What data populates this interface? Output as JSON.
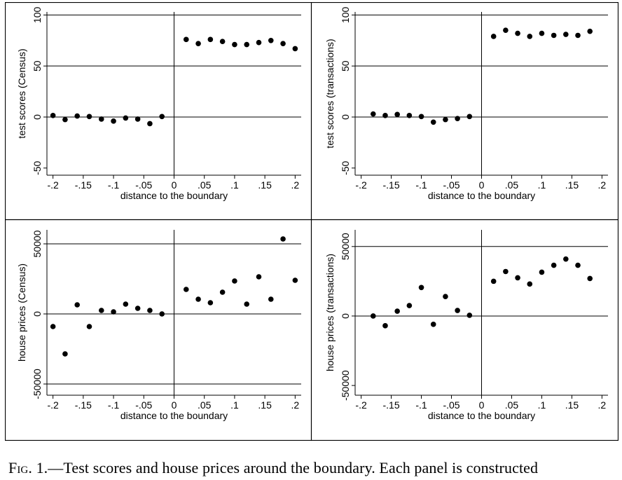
{
  "caption": {
    "label": "Fig. 1.",
    "text": "—Test scores and house prices around the boundary. Each panel is constructed"
  },
  "chart_data": [
    {
      "type": "scatter",
      "xlabel": "distance to the boundary",
      "ylabel": "test scores (Census)",
      "xlim": [
        -0.21,
        0.21
      ],
      "ylim": [
        -57,
        103
      ],
      "xticks": [
        -0.2,
        -0.15,
        -0.1,
        -0.05,
        0,
        0.05,
        0.1,
        0.15,
        0.2
      ],
      "xtick_labels": [
        "-.2",
        "-.15",
        "-.1",
        "-.05",
        "0",
        ".05",
        ".1",
        ".15",
        ".2"
      ],
      "yticks": [
        -50,
        0,
        50,
        100
      ],
      "ytick_labels": [
        "-50",
        "0",
        "50",
        "100"
      ],
      "hlines": [
        0,
        50,
        100
      ],
      "vline": 0,
      "x": [
        -0.2,
        -0.18,
        -0.16,
        -0.14,
        -0.12,
        -0.1,
        -0.08,
        -0.06,
        -0.04,
        -0.02,
        0.02,
        0.04,
        0.06,
        0.08,
        0.1,
        0.12,
        0.14,
        0.16,
        0.18,
        0.2
      ],
      "y": [
        1.5,
        -2.5,
        1.0,
        0.5,
        -2.0,
        -4.0,
        -1.0,
        -2.0,
        -6.5,
        0.5,
        76,
        72,
        76,
        74,
        71,
        71,
        73,
        75,
        72,
        67
      ]
    },
    {
      "type": "scatter",
      "xlabel": "distance to the boundary",
      "ylabel": "test scores (transactions)",
      "xlim": [
        -0.21,
        0.21
      ],
      "ylim": [
        -57,
        103
      ],
      "xticks": [
        -0.2,
        -0.15,
        -0.1,
        -0.05,
        0,
        0.05,
        0.1,
        0.15,
        0.2
      ],
      "xtick_labels": [
        "-.2",
        "-.15",
        "-.1",
        "-.05",
        "0",
        ".05",
        ".1",
        ".15",
        ".2"
      ],
      "yticks": [
        -50,
        0,
        50,
        100
      ],
      "ytick_labels": [
        "-50",
        "0",
        "50",
        "100"
      ],
      "hlines": [
        0,
        50,
        100
      ],
      "vline": 0,
      "x": [
        -0.18,
        -0.16,
        -0.14,
        -0.12,
        -0.1,
        -0.08,
        -0.06,
        -0.04,
        -0.02,
        0.02,
        0.04,
        0.06,
        0.08,
        0.1,
        0.12,
        0.14,
        0.16,
        0.18
      ],
      "y": [
        3,
        1.5,
        2.5,
        1.5,
        0.5,
        -5,
        -2.5,
        -1.5,
        0.5,
        79,
        85,
        82,
        79,
        82,
        80,
        81,
        80,
        84
      ]
    },
    {
      "type": "scatter",
      "xlabel": "distance to the boundary",
      "ylabel": "house prices (Census)",
      "xlim": [
        -0.21,
        0.21
      ],
      "ylim": [
        -58000,
        60000
      ],
      "xticks": [
        -0.2,
        -0.15,
        -0.1,
        -0.05,
        0,
        0.05,
        0.1,
        0.15,
        0.2
      ],
      "xtick_labels": [
        "-.2",
        "-.15",
        "-.1",
        "-.05",
        "0",
        ".05",
        ".1",
        ".15",
        ".2"
      ],
      "yticks": [
        -50000,
        0,
        50000
      ],
      "ytick_labels": [
        "-50000",
        "0",
        "50000"
      ],
      "hlines": [
        -50000,
        0,
        50000
      ],
      "vline": 0,
      "x": [
        -0.2,
        -0.18,
        -0.16,
        -0.14,
        -0.12,
        -0.1,
        -0.08,
        -0.06,
        -0.04,
        -0.02,
        0.02,
        0.04,
        0.06,
        0.08,
        0.1,
        0.12,
        0.14,
        0.16,
        0.18,
        0.2
      ],
      "y": [
        -9000,
        -28500,
        6500,
        -9000,
        2500,
        1500,
        7000,
        4000,
        2500,
        0,
        17500,
        10500,
        8000,
        15500,
        23500,
        7000,
        26500,
        10500,
        53500,
        24000
      ]
    },
    {
      "type": "scatter",
      "xlabel": "distance to the boundary",
      "ylabel": "house prices (transactions)",
      "xlim": [
        -0.21,
        0.21
      ],
      "ylim": [
        -57000,
        62000
      ],
      "xticks": [
        -0.2,
        -0.15,
        -0.1,
        -0.05,
        0,
        0.05,
        0.1,
        0.15,
        0.2
      ],
      "xtick_labels": [
        "-.2",
        "-.15",
        "-.1",
        "-.05",
        "0",
        ".05",
        ".1",
        ".15",
        ".2"
      ],
      "yticks": [
        -50000,
        0,
        50000
      ],
      "ytick_labels": [
        "-50000",
        "0",
        "50000"
      ],
      "hlines": [
        0,
        50000
      ],
      "vline": 0,
      "x": [
        -0.18,
        -0.16,
        -0.14,
        -0.12,
        -0.1,
        -0.08,
        -0.06,
        -0.04,
        -0.02,
        0.02,
        0.04,
        0.06,
        0.08,
        0.1,
        0.12,
        0.14,
        0.16,
        0.18
      ],
      "y": [
        0,
        -7000,
        3500,
        7500,
        20500,
        -6000,
        14000,
        4000,
        500,
        25000,
        32000,
        27500,
        23000,
        31500,
        36500,
        41000,
        36500,
        27000
      ]
    }
  ]
}
